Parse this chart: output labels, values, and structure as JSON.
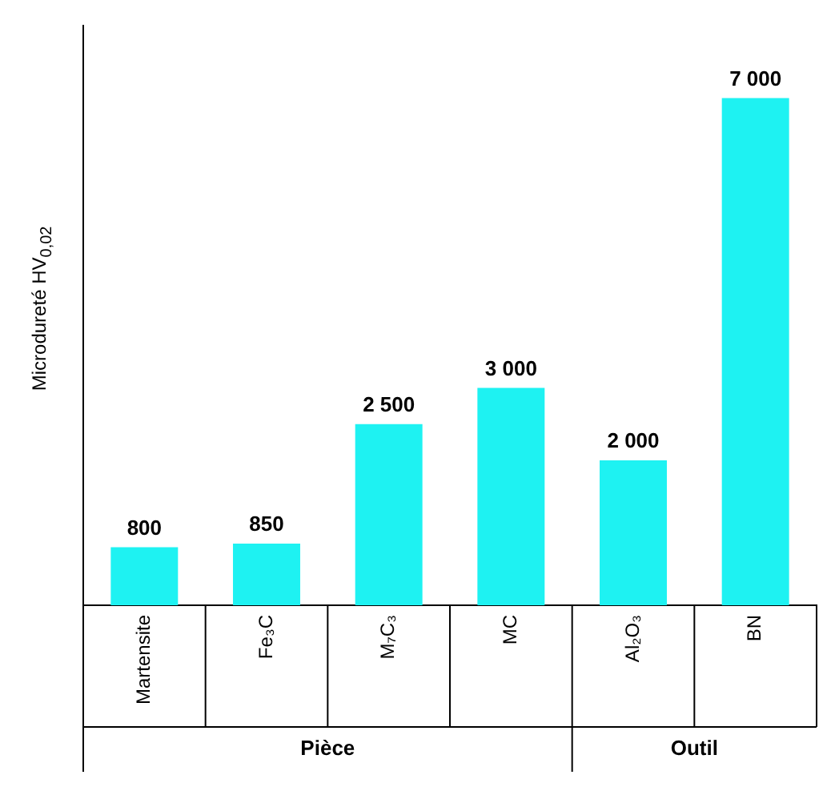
{
  "chart_data": {
    "type": "bar",
    "ylabel": "Microdureté HV$_{0,02}$",
    "categories": [
      "Martensite",
      "Fe₃C",
      "M₇C₃",
      "MC",
      "Al₂O₃",
      "BN"
    ],
    "values": [
      800,
      850,
      2500,
      3000,
      2000,
      7000
    ],
    "value_labels": [
      "800",
      "850",
      "2 500",
      "3 000",
      "2 000",
      "7 000"
    ],
    "color": "#1ef2f2",
    "annotations": [
      "Pièce",
      "Outil"
    ],
    "grid": false,
    "legend": false
  }
}
